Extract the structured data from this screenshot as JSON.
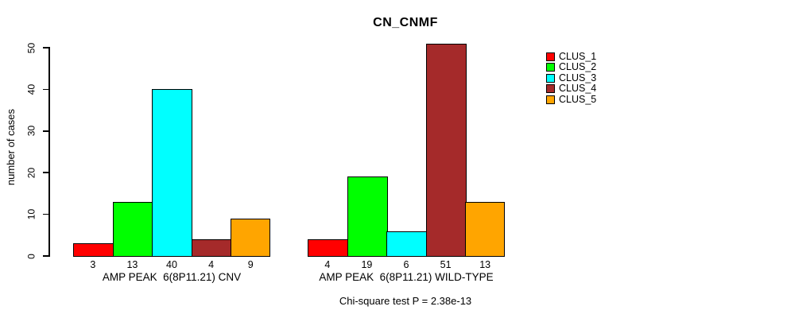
{
  "title": "CN_CNMF",
  "subtitle": "Chi-square test P = 2.38e-13",
  "ylabel": "number of cases",
  "legend": {
    "position": "right",
    "entries": [
      {
        "label": "CLUS_1",
        "color": "#FF0000"
      },
      {
        "label": "CLUS_2",
        "color": "#00FF00"
      },
      {
        "label": "CLUS_3",
        "color": "#00FFFF"
      },
      {
        "label": "CLUS_4",
        "color": "#A52A2A"
      },
      {
        "label": "CLUS_5",
        "color": "#FFA500"
      }
    ]
  },
  "chart_data": {
    "type": "bar",
    "title": "CN_CNMF",
    "xlabel": "",
    "ylabel": "number of cases",
    "ylim": [
      0,
      50
    ],
    "yticks": [
      0,
      10,
      20,
      30,
      40,
      50
    ],
    "grid": false,
    "legend_position": "right",
    "series": [
      "CLUS_1",
      "CLUS_2",
      "CLUS_3",
      "CLUS_4",
      "CLUS_5"
    ],
    "series_colors": [
      "#FF0000",
      "#00FF00",
      "#00FFFF",
      "#A52A2A",
      "#FFA500"
    ],
    "groups": [
      {
        "label": "AMP PEAK  6(8P11.21) CNV",
        "values": [
          3,
          13,
          40,
          4,
          9
        ]
      },
      {
        "label": "AMP PEAK  6(8P11.21) WILD-TYPE",
        "values": [
          4,
          19,
          6,
          51,
          13
        ]
      }
    ],
    "value_labels_shown": true,
    "annotation": "Chi-square test P = 2.38e-13"
  }
}
